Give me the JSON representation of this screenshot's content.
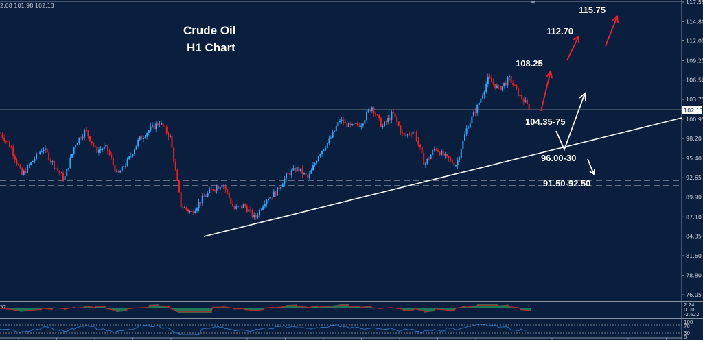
{
  "header": {
    "ohlc_readout": "2.68 101.98 102.13"
  },
  "chart_data": {
    "type": "candlestick",
    "title": "Crude Oil",
    "subtitle": "H1 Chart",
    "ylim": [
      74.6,
      117.85
    ],
    "y_ticks": [
      "117.55",
      "114.80",
      "112.05",
      "109.25",
      "106.50",
      "103.75",
      "100.95",
      "98.20",
      "95.40",
      "92.65",
      "89.90",
      "87.10",
      "84.35",
      "81.60",
      "78.80",
      "76.05"
    ],
    "current_price": "102.13",
    "approx_close_path": [
      98.9,
      96.9,
      93.0,
      95.0,
      96.9,
      94.5,
      92.4,
      97.4,
      99.4,
      96.5,
      96.9,
      93.0,
      95.0,
      97.9,
      99.4,
      100.5,
      98.4,
      88.7,
      87.7,
      89.6,
      91.1,
      91.8,
      88.2,
      88.7,
      86.9,
      89.6,
      90.6,
      93.0,
      94.0,
      92.5,
      96.0,
      97.9,
      100.8,
      99.8,
      100.3,
      102.8,
      99.8,
      101.8,
      98.4,
      99.4,
      94.5,
      96.9,
      95.5,
      94.5,
      99.8,
      102.8,
      106.7,
      105.2,
      106.7,
      104.2,
      102.3
    ],
    "trendline": {
      "from": 84.35,
      "to": 100.95
    },
    "support_zone": [
      91.5,
      92.5
    ],
    "annotations": {
      "t1": "115.75",
      "t2": "112.70",
      "t3": "108.25",
      "s1": "104.35-75",
      "s2": "96.00-30",
      "s3": "91.50-92.50"
    },
    "colors": {
      "background": "#0a1f3d",
      "up": "#29a8ff",
      "down": "#ff1a1a",
      "target_arrow": "#e8202a",
      "alt_arrow": "#ffffff"
    },
    "macd": {
      "ticks": [
        "2.24",
        "0.00",
        "-2.622"
      ],
      "label": "57",
      "hist_color": "#2db36a",
      "signal_color": "#c0202a"
    },
    "rsi": {
      "ticks": [
        "100",
        "70",
        "30",
        "0"
      ],
      "line_color": "#2a6fc0"
    }
  }
}
